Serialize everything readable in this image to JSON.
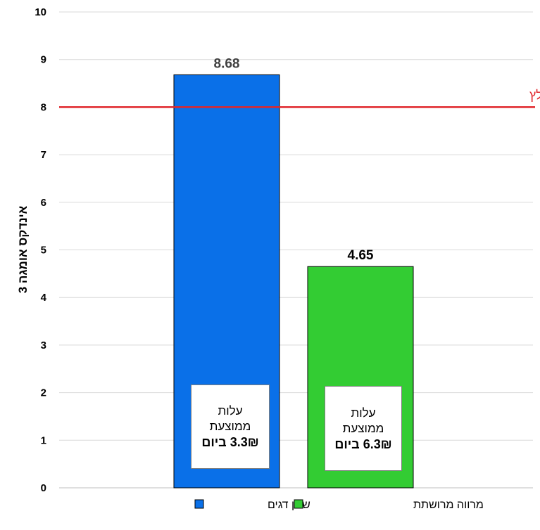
{
  "chart_data": {
    "type": "bar",
    "categories": [
      "שמן דגים",
      "מרווה מרושתת"
    ],
    "series": [
      {
        "values": [
          8.68,
          4.65
        ]
      }
    ],
    "bar_colors": [
      "#0A70E8",
      "#33CC33"
    ],
    "data_labels": [
      "8.68",
      "4.65"
    ],
    "title": "",
    "xlabel": "",
    "ylabel": "אינדקס אומגה 3",
    "ylim": [
      0,
      10
    ],
    "yticks": [
      0,
      1,
      2,
      3,
      4,
      5,
      6,
      7,
      8,
      9,
      10
    ],
    "grid": true,
    "legend_position": "bottom",
    "legend": [
      {
        "label": "שמן דגים",
        "color": "#0A70E8"
      },
      {
        "label": "מרווה מרושתת",
        "color": "#33CC33"
      }
    ],
    "reference_line": {
      "value": 8,
      "label": "סף מינימלי מומלץ",
      "color": "#E0262B"
    },
    "annotations": [
      {
        "line1": "עלות",
        "line2": "ממוצעת",
        "line3": "3.3₪ ביום"
      },
      {
        "line1": "עלות",
        "line2": "ממוצעת",
        "line3": "6.3₪ ביום"
      }
    ]
  }
}
